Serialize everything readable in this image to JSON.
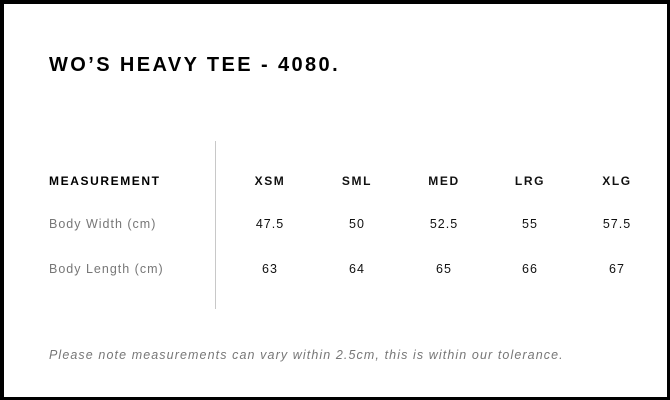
{
  "title": "WO’S HEAVY TEE - 4080.",
  "table": {
    "header_label": "MEASUREMENT",
    "sizes": [
      "XSM",
      "SML",
      "MED",
      "LRG",
      "XLG"
    ],
    "rows": [
      {
        "label": "Body Width (cm)",
        "values": [
          "47.5",
          "50",
          "52.5",
          "55",
          "57.5"
        ]
      },
      {
        "label": "Body Length (cm)",
        "values": [
          "63",
          "64",
          "65",
          "66",
          "67"
        ]
      }
    ]
  },
  "note": "Please note measurements can vary within 2.5cm, this is within our tolerance."
}
